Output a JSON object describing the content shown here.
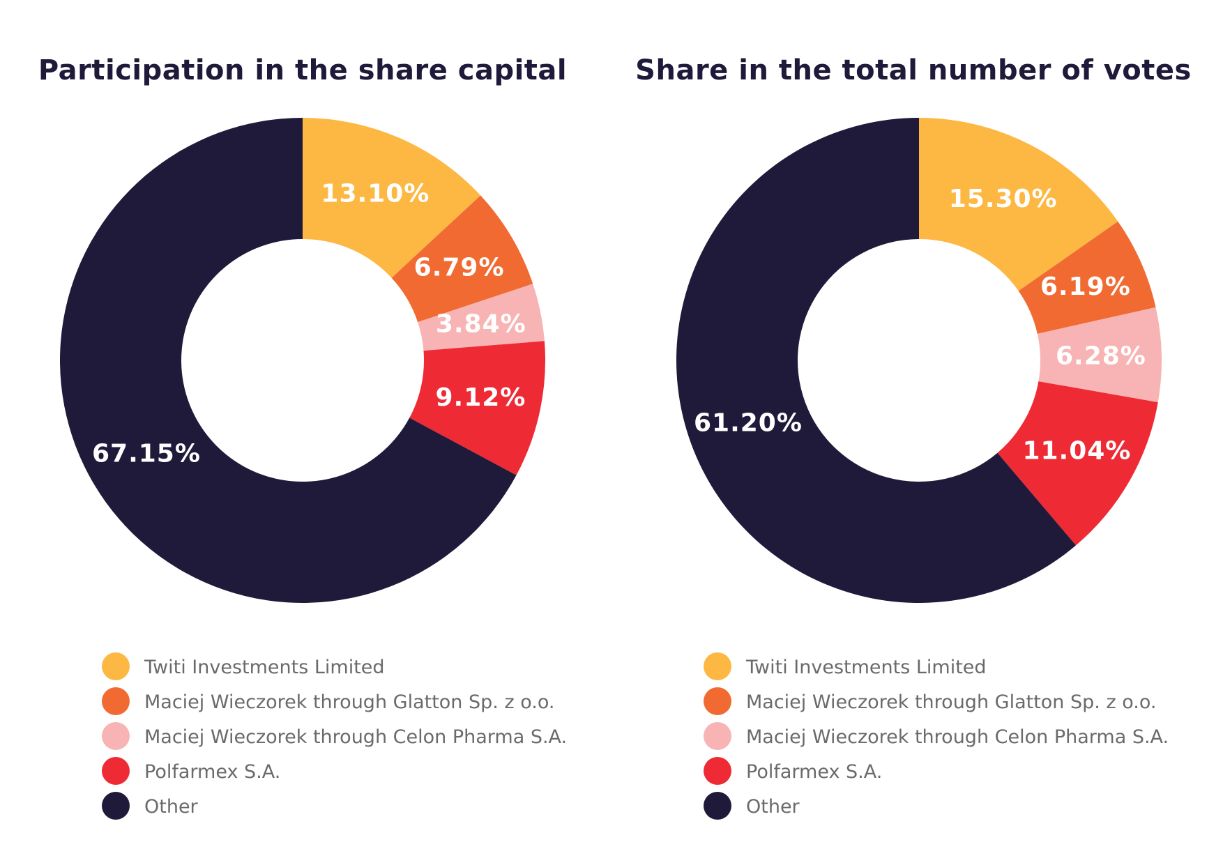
{
  "chart_data": [
    {
      "type": "pie",
      "title": "Participation in the share capital",
      "categories": [
        "Twiti Investments Limited",
        "Maciej Wieczorek through Glatton Sp. z o.o.",
        "Maciej Wieczorek through Celon Pharma S.A.",
        "Polfarmex S.A.",
        "Other"
      ],
      "values": [
        13.1,
        6.79,
        3.84,
        9.12,
        67.15
      ],
      "labels": [
        "13.10%",
        "6.79%",
        "3.84%",
        "9.12%",
        "67.15%"
      ],
      "colors": [
        "#fdb844",
        "#f06a32",
        "#f8b4b4",
        "#ee2a35",
        "#1f1a3a"
      ],
      "donut": true,
      "legend_position": "bottom"
    },
    {
      "type": "pie",
      "title": "Share in the total number of votes",
      "categories": [
        "Twiti Investments Limited",
        "Maciej Wieczorek through Glatton Sp. z o.o.",
        "Maciej Wieczorek through Celon Pharma S.A.",
        "Polfarmex S.A.",
        "Other"
      ],
      "values": [
        15.3,
        6.19,
        6.28,
        11.04,
        61.2
      ],
      "labels": [
        "15.30%",
        "6.19%",
        "6.28%",
        "11.04%",
        "61.20%"
      ],
      "colors": [
        "#fdb844",
        "#f06a32",
        "#f8b4b4",
        "#ee2a35",
        "#1f1a3a"
      ],
      "donut": true,
      "legend_position": "bottom"
    }
  ]
}
